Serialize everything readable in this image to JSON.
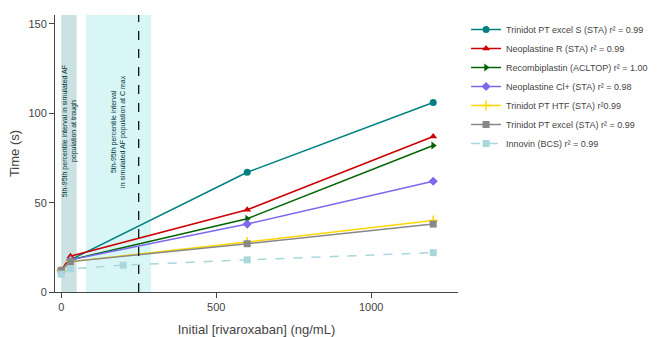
{
  "chart_data": {
    "type": "line",
    "xlabel": "Initial [rivaroxaban] (ng/mL)",
    "ylabel": "Time (s)",
    "xlim": [
      -20,
      1280
    ],
    "ylim": [
      0,
      155
    ],
    "xticks": [
      0,
      500,
      1000
    ],
    "yticks": [
      0,
      50,
      100,
      150
    ],
    "grid": false,
    "legend": "right",
    "series": [
      {
        "name": "Trinidot PT excel S (STA) r² = 0.99",
        "color": "#008080",
        "marker": "circle",
        "line_style": "solid",
        "x": [
          0,
          30,
          600,
          1200
        ],
        "values": [
          12,
          18,
          67,
          106
        ]
      },
      {
        "name": "Neoplastine R (STA) r² = 0.99",
        "color": "#CC0000",
        "marker": "triangle-up",
        "line_style": "solid",
        "x": [
          0,
          30,
          600,
          1200
        ],
        "values": [
          12,
          20,
          46,
          87
        ]
      },
      {
        "name": "Recombiplastin (ACLTOP) r² = 1.00",
        "color": "#006400",
        "marker": "triangle-right",
        "line_style": "solid",
        "x": [
          0,
          30,
          600,
          1200
        ],
        "values": [
          12,
          18,
          41,
          82
        ]
      },
      {
        "name": "Neoplastine Cl+ (STA) r² = 0.98",
        "color": "#7B68EE",
        "marker": "diamond",
        "line_style": "solid",
        "x": [
          0,
          30,
          600,
          1200
        ],
        "values": [
          12,
          18,
          38,
          62
        ]
      },
      {
        "name": "Trinidot PT HTF (STA) r²0.99",
        "color": "#FFD700",
        "marker": "cross",
        "line_style": "solid",
        "x": [
          0,
          30,
          600,
          1200
        ],
        "values": [
          12,
          17,
          28,
          40
        ]
      },
      {
        "name": "Trinidot PT excel (STA) r² = 0.99",
        "color": "#888888",
        "marker": "square",
        "line_style": "solid",
        "x": [
          0,
          30,
          600,
          1200
        ],
        "values": [
          12,
          17,
          27,
          38
        ]
      },
      {
        "name": "Innovin (BCS) r² = 0.99",
        "color": "#A8D8DC",
        "marker": "square",
        "line_style": "dashed",
        "x": [
          0,
          30,
          200,
          600,
          1200
        ],
        "values": [
          10,
          13,
          15,
          18,
          22
        ]
      }
    ],
    "spans": [
      {
        "x0": 0,
        "x1": 50,
        "color": "#006868",
        "text": "5th-95th percentile interval in simulated AF\npopulation at trough"
      },
      {
        "x0": 80,
        "x1": 290,
        "color": "#40D0D0",
        "text": "5th-95th percentile interval\nin simulated AF population at C max"
      }
    ],
    "vline": {
      "x": 250,
      "color": "black",
      "line_style": "dashed"
    }
  }
}
